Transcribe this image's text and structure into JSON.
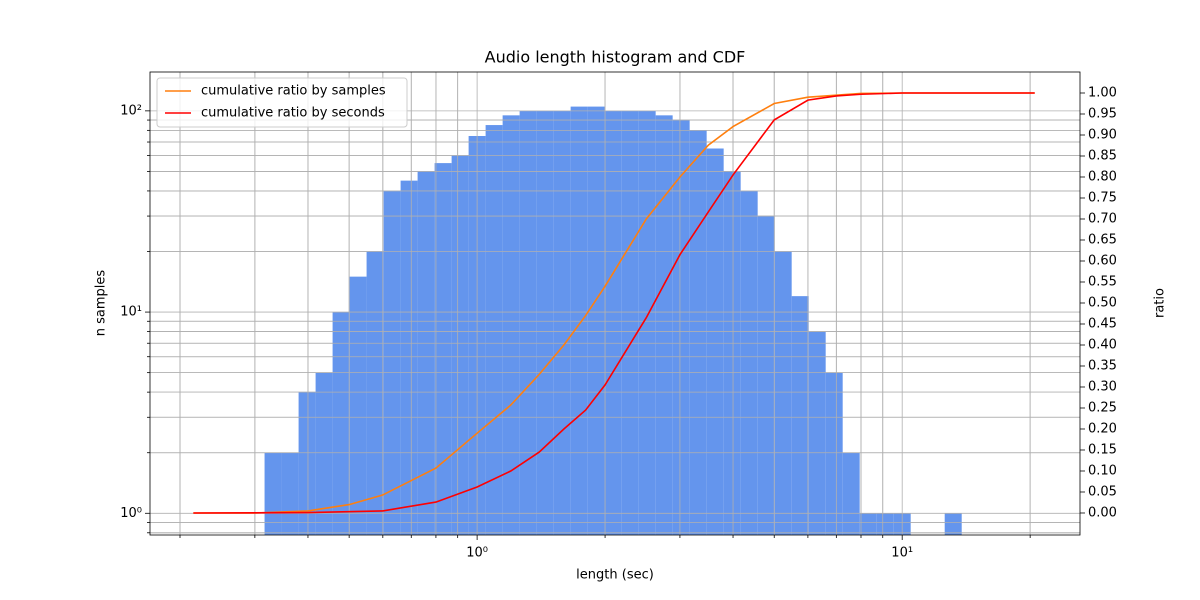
{
  "chart_data": {
    "type": "histogram",
    "title": "Audio length histogram and CDF",
    "xlabel": "length (sec)",
    "ylabel": "n samples",
    "y2label": "ratio",
    "xlog": true,
    "ylog": true,
    "grid": true,
    "legend": "upper left",
    "color": "#6495ed",
    "bins": [
      0.2188,
      0.2399,
      0.263,
      0.2884,
      0.3162,
      0.3467,
      0.3802,
      0.4169,
      0.4571,
      0.5012,
      0.5495,
      0.6026,
      0.6607,
      0.7244,
      0.7943,
      0.871,
      0.955,
      1.0471,
      1.1482,
      1.2589,
      1.3804,
      1.5136,
      1.6596,
      1.8197,
      1.9953,
      2.1878,
      2.3988,
      2.6303,
      2.884,
      3.1623,
      3.4674,
      3.8019,
      4.1687,
      4.5709,
      5.0119,
      5.4954,
      6.0256,
      6.6069,
      7.2444,
      7.9433,
      8.7096,
      9.5499,
      10.4713,
      11.4815,
      12.5893,
      13.8038,
      15.1356,
      16.5959,
      18.197,
      19.9526,
      21.8776
    ],
    "counts": [
      0,
      0,
      0,
      0,
      2,
      2,
      4,
      5,
      10,
      15,
      20,
      40,
      45,
      50,
      55,
      60,
      75,
      85,
      95,
      100,
      100,
      100,
      105,
      105,
      100,
      100,
      100,
      95,
      90,
      80,
      65,
      50,
      40,
      30,
      20,
      12,
      8,
      5,
      2,
      1,
      1,
      1,
      0,
      0,
      1,
      0,
      0,
      0,
      0,
      0
    ],
    "xlim": [
      0.17,
      26.2
    ],
    "ylim": [
      0.78,
      156
    ],
    "y2lim": [
      -0.0524,
      1.05
    ],
    "xticks": [
      {
        "value": 1,
        "label": "10⁰"
      },
      {
        "value": 10,
        "label": "10¹"
      }
    ],
    "xminor": [
      0.2,
      0.3,
      0.4,
      0.5,
      0.6,
      0.7,
      0.8,
      0.9,
      2,
      3,
      4,
      5,
      6,
      7,
      8,
      9,
      20
    ],
    "yticks": [
      {
        "value": 1,
        "label": "10⁰"
      },
      {
        "value": 10,
        "label": "10¹"
      },
      {
        "value": 100,
        "label": "10²"
      }
    ],
    "yminor": [
      0.8,
      0.9,
      2,
      3,
      4,
      5,
      6,
      7,
      8,
      9,
      20,
      30,
      40,
      50,
      60,
      70,
      80,
      90
    ],
    "y2ticks": [
      {
        "value": 0,
        "label": "0.00"
      },
      {
        "value": 0.05,
        "label": "0.05"
      },
      {
        "value": 0.1,
        "label": "0.10"
      },
      {
        "value": 0.15,
        "label": "0.15"
      },
      {
        "value": 0.2,
        "label": "0.20"
      },
      {
        "value": 0.25,
        "label": "0.25"
      },
      {
        "value": 0.3,
        "label": "0.30"
      },
      {
        "value": 0.35,
        "label": "0.35"
      },
      {
        "value": 0.4,
        "label": "0.40"
      },
      {
        "value": 0.45,
        "label": "0.45"
      },
      {
        "value": 0.5,
        "label": "0.50"
      },
      {
        "value": 0.55,
        "label": "0.55"
      },
      {
        "value": 0.6,
        "label": "0.60"
      },
      {
        "value": 0.65,
        "label": "0.65"
      },
      {
        "value": 0.7,
        "label": "0.70"
      },
      {
        "value": 0.75,
        "label": "0.75"
      },
      {
        "value": 0.8,
        "label": "0.80"
      },
      {
        "value": 0.85,
        "label": "0.85"
      },
      {
        "value": 0.9,
        "label": "0.90"
      },
      {
        "value": 0.95,
        "label": "0.95"
      },
      {
        "value": 1,
        "label": "1.00"
      }
    ],
    "series": [
      {
        "name": "cumulative ratio by samples",
        "color": "#ff7f0e",
        "axis": "y2",
        "x": [
          0.215,
          0.3,
          0.4,
          0.5,
          0.6,
          0.8,
          1.0,
          1.2,
          1.4,
          1.6,
          1.8,
          2.0,
          2.5,
          3.0,
          3.5,
          4.0,
          5.0,
          6.0,
          8.0,
          10,
          20.5
        ],
        "values": [
          0,
          0,
          0.005,
          0.02,
          0.043,
          0.107,
          0.19,
          0.257,
          0.33,
          0.4,
          0.47,
          0.54,
          0.7,
          0.8,
          0.876,
          0.92,
          0.975,
          0.99,
          0.999,
          1.0,
          1.0
        ]
      },
      {
        "name": "cumulative ratio by seconds",
        "color": "#ff0000",
        "axis": "y2",
        "x": [
          0.215,
          0.4,
          0.6,
          0.8,
          1.0,
          1.2,
          1.4,
          1.6,
          1.8,
          2.0,
          2.5,
          3.0,
          3.5,
          4.0,
          5.0,
          6.0,
          7.0,
          8.0,
          10,
          20.5
        ],
        "values": [
          0,
          0.001,
          0.005,
          0.026,
          0.062,
          0.1,
          0.145,
          0.2,
          0.245,
          0.305,
          0.465,
          0.615,
          0.717,
          0.805,
          0.936,
          0.983,
          0.993,
          0.997,
          1.0,
          1.0
        ]
      }
    ]
  }
}
